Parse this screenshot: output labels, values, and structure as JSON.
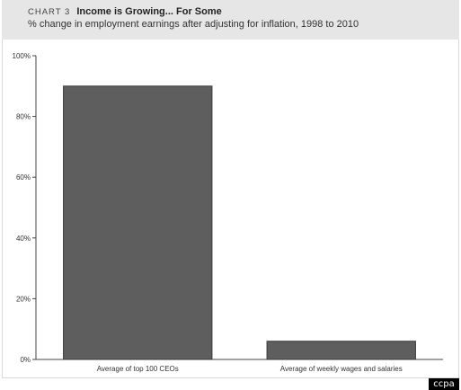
{
  "header": {
    "chart_number": "CHART 3",
    "title": "Income is Growing... For Some",
    "subtitle": "% change in employment earnings after adjusting for inflation, 1998 to 2010"
  },
  "brand": {
    "logo_text": "ccpa"
  },
  "colors": {
    "bar": "#5e5e5f",
    "bar_stroke": "#3a3a3a",
    "axis": "#444444",
    "header_bg": "#e6e6e6",
    "badge_bg": "#000000"
  },
  "chart_data": {
    "type": "bar",
    "title": "Income is Growing... For Some",
    "subtitle": "% change in employment earnings after adjusting for inflation, 1998 to 2010",
    "categories": [
      "Average of top 100 CEOs",
      "Average of weekly wages and salaries"
    ],
    "values": [
      90,
      6
    ],
    "ylim": [
      0,
      100
    ],
    "yticks": [
      0,
      20,
      40,
      60,
      80,
      100
    ],
    "ytick_labels": [
      "0%",
      "20%",
      "40%",
      "60%",
      "80%",
      "100%"
    ],
    "xlabel": "",
    "ylabel": "",
    "grid": false,
    "legend": "none"
  }
}
